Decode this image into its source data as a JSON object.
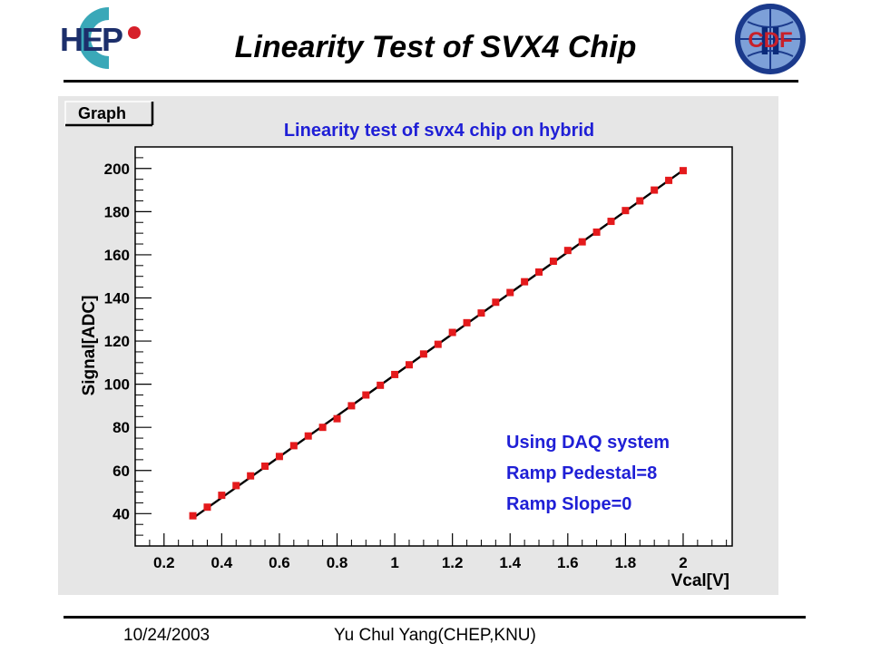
{
  "slide": {
    "title": "Linearity Test of SVX4 Chip",
    "footer_date": "10/24/2003",
    "footer_author": "Yu Chul Yang(CHEP,KNU)"
  },
  "logos": {
    "left_logo_text": "HEP",
    "right_logo_text": "CDF",
    "right_logo_roman": "II"
  },
  "chart_data": {
    "type": "scatter",
    "canvas_label": "Graph",
    "title": "Linearity test of svx4 chip on hybrid",
    "xlabel": "Vcal[V]",
    "ylabel": "Signal[ADC]",
    "xlim": [
      0.1,
      2.17
    ],
    "ylim": [
      25,
      210
    ],
    "xticks": [
      0.2,
      0.4,
      0.6,
      0.8,
      1,
      1.2,
      1.4,
      1.6,
      1.8,
      2
    ],
    "xtick_labels": [
      "0.2",
      "0.4",
      "0.6",
      "0.8",
      "1",
      "1.2",
      "1.4",
      "1.6",
      "1.8",
      "2"
    ],
    "yticks": [
      40,
      60,
      80,
      100,
      120,
      140,
      160,
      180,
      200
    ],
    "ytick_labels": [
      "40",
      "60",
      "80",
      "100",
      "120",
      "140",
      "160",
      "180",
      "200"
    ],
    "grid": false,
    "marker_color": "#e41a1c",
    "fit_line_color": "#000000",
    "annotation_color": "#1f1fd6",
    "annotations": [
      "Using DAQ system",
      "Ramp Pedestal=8",
      "Ramp Slope=0"
    ],
    "points": {
      "x": [
        0.3,
        0.35,
        0.4,
        0.45,
        0.5,
        0.55,
        0.6,
        0.65,
        0.7,
        0.75,
        0.8,
        0.85,
        0.9,
        0.95,
        1.0,
        1.05,
        1.1,
        1.15,
        1.2,
        1.25,
        1.3,
        1.35,
        1.4,
        1.45,
        1.5,
        1.55,
        1.6,
        1.65,
        1.7,
        1.75,
        1.8,
        1.85,
        1.9,
        1.95,
        2.0
      ],
      "y": [
        39,
        43,
        48.5,
        53,
        57.5,
        62,
        66.5,
        71.5,
        76,
        80,
        84,
        90,
        95,
        99.5,
        104.5,
        109,
        114,
        118.5,
        124,
        128.5,
        133,
        138,
        142.5,
        147.5,
        152,
        157,
        162,
        166,
        170.5,
        175.5,
        180.5,
        185,
        190,
        194.5,
        199
      ]
    },
    "fit_line": {
      "x": [
        0.3,
        2.0
      ],
      "y": [
        37.9,
        199.2
      ]
    }
  }
}
